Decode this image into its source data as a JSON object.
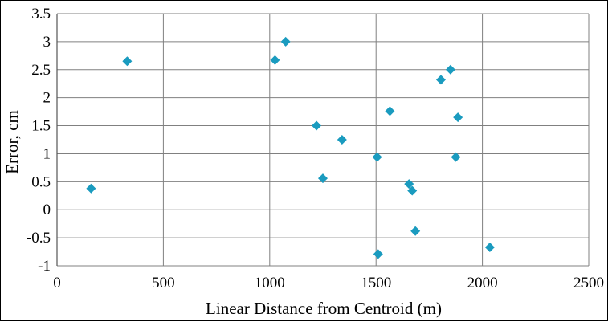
{
  "chart_data": {
    "type": "scatter",
    "xlabel": "Linear Distance from Centroid (m)",
    "ylabel": "Error, cm",
    "xlim": [
      0,
      2500
    ],
    "ylim": [
      -1,
      3.5
    ],
    "x_ticks": [
      0,
      500,
      1000,
      1500,
      2000,
      2500
    ],
    "y_ticks": [
      3.5,
      3,
      2.5,
      2,
      1.5,
      1,
      0.5,
      0,
      -0.5,
      -1
    ],
    "x_tick_labels": [
      "0",
      "500",
      "1000",
      "1500",
      "2000",
      "2500"
    ],
    "y_tick_labels": [
      "3.5",
      "3",
      "2.5",
      "2",
      "1.5",
      "1",
      "0.5",
      "0",
      "-0.5",
      "-1"
    ],
    "grid": true,
    "marker": "diamond",
    "marker_color": "#1a9bbf",
    "grid_color": "#808080",
    "series": [
      {
        "x": [
          160,
          330,
          1025,
          1075,
          1220,
          1250,
          1340,
          1505,
          1510,
          1565,
          1655,
          1670,
          1685,
          1805,
          1850,
          1875,
          1885,
          2035
        ],
        "y": [
          0.38,
          2.65,
          2.67,
          3.0,
          1.5,
          0.56,
          1.25,
          0.94,
          -0.79,
          1.76,
          0.46,
          0.34,
          -0.38,
          2.32,
          2.5,
          0.94,
          1.65,
          -0.67
        ]
      }
    ]
  }
}
